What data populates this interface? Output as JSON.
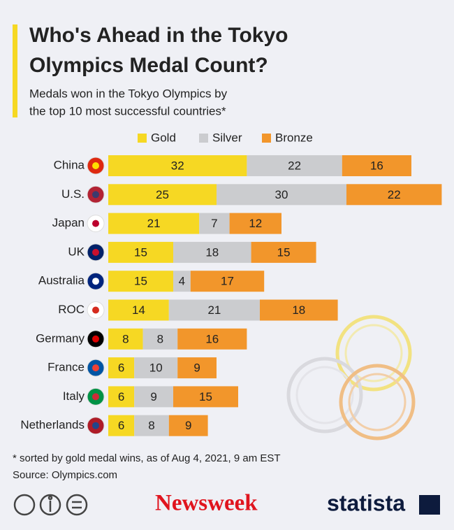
{
  "chart_data": {
    "type": "stacked-bar",
    "orientation": "horizontal",
    "title": [
      "Who's Ahead in the Tokyo",
      "Olympics Medal Count?"
    ],
    "subtitle": [
      "Medals won in the Tokyo Olympics by",
      "the top 10 most successful countries*"
    ],
    "categories": [
      "China",
      "U.S.",
      "Japan",
      "UK",
      "Australia",
      "ROC",
      "Germany",
      "France",
      "Italy",
      "Netherlands"
    ],
    "series": [
      {
        "name": "Gold",
        "color": "#f6d823",
        "values": [
          32,
          25,
          21,
          15,
          15,
          14,
          8,
          6,
          6,
          6
        ]
      },
      {
        "name": "Silver",
        "color": "#cbcccf",
        "values": [
          22,
          30,
          7,
          18,
          4,
          21,
          8,
          10,
          9,
          8
        ]
      },
      {
        "name": "Bronze",
        "color": "#f2962b",
        "values": [
          16,
          22,
          12,
          15,
          17,
          18,
          16,
          9,
          15,
          9
        ]
      }
    ],
    "footnote": "* sorted by gold medal wins, as of Aug 4, 2021, 9 am EST",
    "source": "Source: Olympics.com"
  },
  "footer": {
    "publisher": "Newsweek",
    "brand": "statista"
  }
}
